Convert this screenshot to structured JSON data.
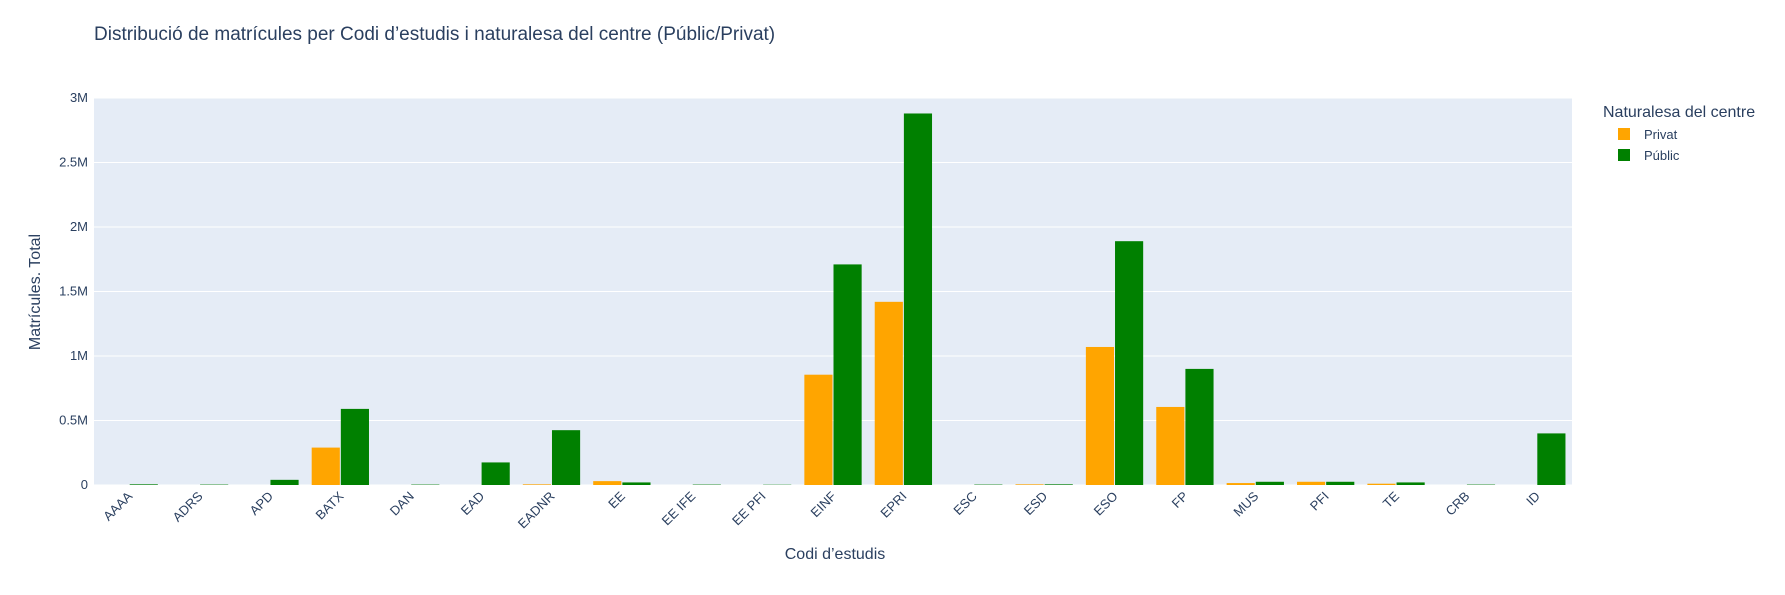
{
  "chart_data": {
    "type": "bar",
    "title": "Distribució de matrícules per Codi d’estudis i naturalesa del centre (Públic/Privat)",
    "xlabel": "Codi d’estudis",
    "ylabel": "Matrícules. Total",
    "categories": [
      "AAAA",
      "ADRS",
      "APD",
      "BATX",
      "DAN",
      "EAD",
      "EADNR",
      "EE",
      "EE IFE",
      "EE PFI",
      "EINF",
      "EPRI",
      "ESC",
      "ESD",
      "ESO",
      "FP",
      "MUS",
      "PFI",
      "TE",
      "CRB",
      "ID"
    ],
    "series": [
      {
        "name": "Privat",
        "color": "#FFA500",
        "values": [
          0,
          0,
          0,
          290000,
          0,
          0,
          5000,
          30000,
          0,
          0,
          855000,
          1420000,
          0,
          5000,
          1070000,
          605000,
          15000,
          25000,
          10000,
          0,
          0
        ]
      },
      {
        "name": "Públic",
        "color": "#008000",
        "values": [
          5000,
          3000,
          40000,
          590000,
          3000,
          175000,
          425000,
          20000,
          3000,
          2000,
          1710000,
          2880000,
          3000,
          5000,
          1890000,
          900000,
          25000,
          25000,
          20000,
          3000,
          400000
        ]
      }
    ],
    "ylim": [
      0,
      3000000
    ],
    "yticks": [
      0,
      500000,
      1000000,
      1500000,
      2000000,
      2500000,
      3000000
    ],
    "ytick_labels": [
      "0",
      "0.5M",
      "1M",
      "1.5M",
      "2M",
      "2.5M",
      "3M"
    ],
    "grid": true,
    "legend": {
      "title": "Naturalesa del centre",
      "placement": "top-right"
    },
    "colors": {
      "plot_bg": "#E5ECF6",
      "grid": "#ffffff",
      "text": "#2a3f5f"
    }
  }
}
